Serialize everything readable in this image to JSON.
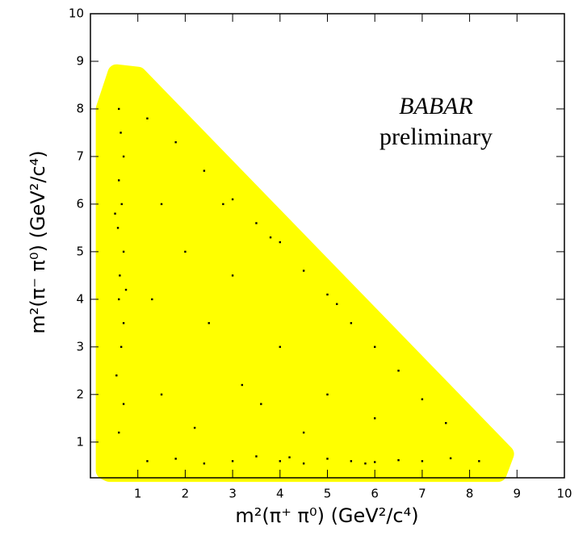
{
  "chart_data": {
    "type": "scatter",
    "xlabel": "m²(π⁺ π⁰) (GeV²/c⁴)",
    "ylabel": "m²(π⁻ π⁰) (GeV²/c⁴)",
    "annotations": [
      "BABAR",
      "preliminary"
    ],
    "annotation_color": "#1010e0",
    "xlim": [
      0,
      10
    ],
    "ylim": [
      0.25,
      10
    ],
    "xticks": [
      1,
      2,
      3,
      4,
      5,
      6,
      7,
      8,
      9,
      10
    ],
    "yticks": [
      1,
      2,
      3,
      4,
      5,
      6,
      7,
      8,
      9,
      10
    ],
    "region": {
      "color": "#ffff00",
      "x": [
        0.3,
        0.3,
        0.55,
        1.0,
        8.75,
        8.6,
        0.4
      ],
      "y": [
        0.4,
        8.0,
        8.75,
        8.7,
        0.75,
        0.35,
        0.35
      ]
    },
    "series": [
      {
        "color": "#000000",
        "x": [
          0.6,
          0.7,
          0.55,
          0.65,
          0.7,
          0.6,
          0.62,
          0.7,
          0.58,
          0.66,
          0.6,
          0.7,
          0.64,
          0.6,
          0.75,
          0.52,
          1.2,
          1.8,
          2.4,
          3.0,
          3.5,
          4.0,
          4.5,
          5.0,
          5.5,
          6.0,
          6.5,
          7.0,
          7.6,
          8.2,
          4.2,
          5.8,
          1.2,
          1.8,
          2.4,
          3.0,
          3.5,
          4.0,
          4.5,
          5.0,
          5.5,
          6.0,
          6.5,
          7.0,
          7.5,
          3.8,
          5.2,
          1.5,
          2.5,
          3.2,
          2.0,
          4.0,
          5.0,
          3.0,
          1.5,
          6.0,
          2.2,
          4.5,
          1.3,
          3.6,
          2.8
        ],
        "values": [
          1.2,
          1.8,
          2.4,
          3.0,
          3.5,
          4.0,
          4.5,
          5.0,
          5.5,
          6.0,
          6.5,
          7.0,
          7.5,
          8.0,
          4.2,
          5.8,
          0.6,
          0.65,
          0.55,
          0.6,
          0.7,
          0.6,
          0.55,
          0.65,
          0.6,
          0.58,
          0.62,
          0.6,
          0.66,
          0.6,
          0.68,
          0.55,
          7.8,
          7.3,
          6.7,
          6.1,
          5.6,
          5.2,
          4.6,
          4.1,
          3.5,
          3.0,
          2.5,
          1.9,
          1.4,
          5.3,
          3.9,
          2.0,
          3.5,
          2.2,
          5.0,
          3.0,
          2.0,
          4.5,
          6.0,
          1.5,
          1.3,
          1.2,
          4.0,
          1.8,
          6.0
        ]
      }
    ]
  }
}
